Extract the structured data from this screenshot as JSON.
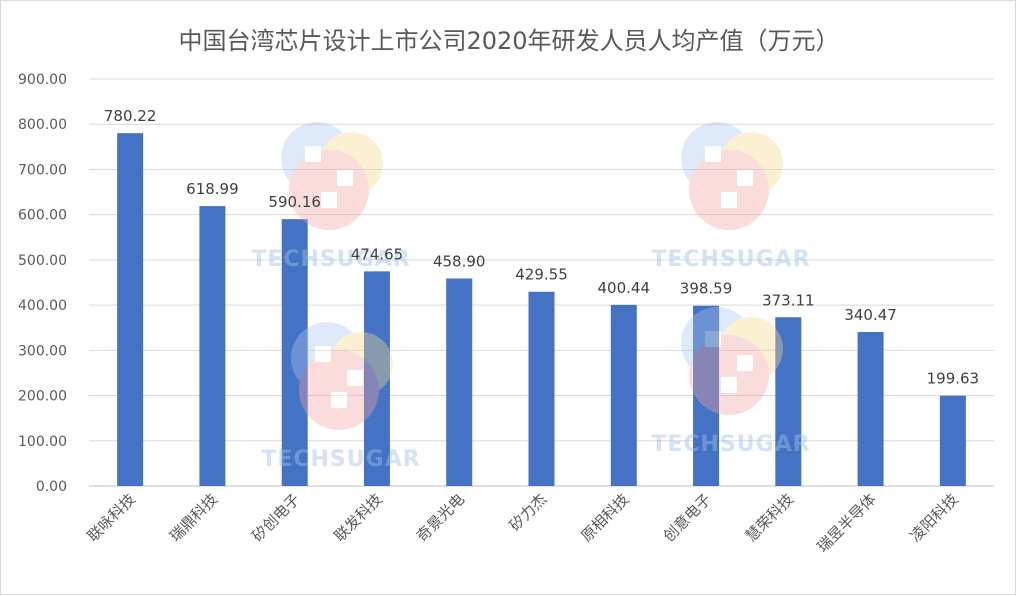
{
  "chart_data": {
    "type": "bar",
    "title": "中国台湾芯片设计上市公司2020年研发人员人均产值（万元）",
    "xlabel": "",
    "ylabel": "",
    "categories": [
      "联咏科技",
      "瑞鼎科技",
      "矽创电子",
      "联发科技",
      "奇景光电",
      "矽力杰",
      "原相科技",
      "创意电子",
      "慧荣科技",
      "瑞昱半导体",
      "凌阳科技"
    ],
    "values": [
      780.22,
      618.99,
      590.16,
      474.65,
      458.9,
      429.55,
      400.44,
      398.59,
      373.11,
      340.47,
      199.63
    ],
    "value_labels": [
      "780.22",
      "618.99",
      "590.16",
      "474.65",
      "458.90",
      "429.55",
      "400.44",
      "398.59",
      "373.11",
      "340.47",
      "199.63"
    ],
    "ylim": [
      0,
      900
    ],
    "yticks": [
      "0.00",
      "100.00",
      "200.00",
      "300.00",
      "400.00",
      "500.00",
      "600.00",
      "700.00",
      "800.00",
      "900.00"
    ],
    "grid": true,
    "legend": "none",
    "bar_color": "#4472c4"
  },
  "watermark": {
    "text": "TECHSUGAR"
  }
}
